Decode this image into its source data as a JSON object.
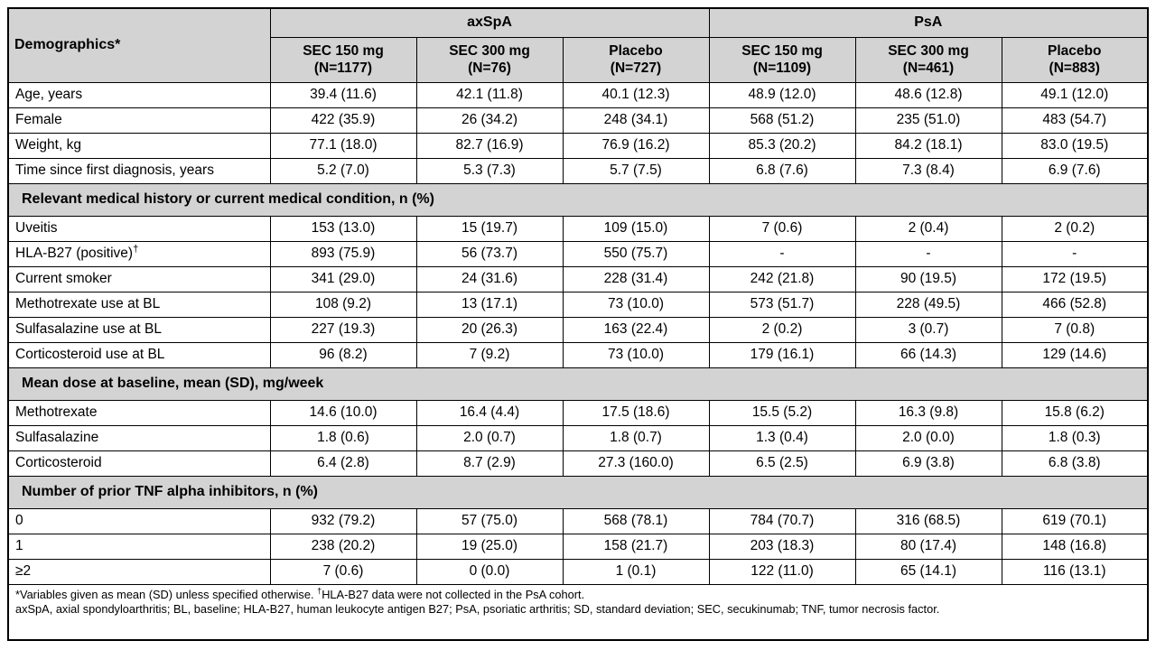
{
  "table": {
    "corner_header": "Demographics*",
    "groups": [
      {
        "label": "axSpA",
        "span": 3
      },
      {
        "label": "PsA",
        "span": 3
      }
    ],
    "columns": [
      {
        "line1": "SEC 150 mg",
        "line2": "(N=1177)"
      },
      {
        "line1": "SEC 300 mg",
        "line2": "(N=76)"
      },
      {
        "line1": "Placebo",
        "line2": "(N=727)"
      },
      {
        "line1": "SEC 150 mg",
        "line2": "(N=1109)"
      },
      {
        "line1": "SEC 300 mg",
        "line2": "(N=461)"
      },
      {
        "line1": "Placebo",
        "line2": "(N=883)"
      }
    ],
    "sections": [
      {
        "header": null,
        "rows": [
          {
            "label": "Age, years",
            "values": [
              "39.4 (11.6)",
              "42.1 (11.8)",
              "40.1 (12.3)",
              "48.9 (12.0)",
              "48.6 (12.8)",
              "49.1 (12.0)"
            ]
          },
          {
            "label": "Female",
            "values": [
              "422 (35.9)",
              "26 (34.2)",
              "248 (34.1)",
              "568 (51.2)",
              "235 (51.0)",
              "483 (54.7)"
            ]
          },
          {
            "label": "Weight, kg",
            "values": [
              "77.1 (18.0)",
              "82.7 (16.9)",
              "76.9 (16.2)",
              "85.3 (20.2)",
              "84.2 (18.1)",
              "83.0 (19.5)"
            ]
          },
          {
            "label": "Time since first diagnosis, years",
            "values": [
              "5.2 (7.0)",
              "5.3 (7.3)",
              "5.7 (7.5)",
              "6.8 (7.6)",
              "7.3 (8.4)",
              "6.9 (7.6)"
            ]
          }
        ]
      },
      {
        "header": "Relevant medical history or current medical condition, n (%)",
        "rows": [
          {
            "label": "Uveitis",
            "values": [
              "153 (13.0)",
              "15 (19.7)",
              "109 (15.0)",
              "7 (0.6)",
              "2 (0.4)",
              "2 (0.2)"
            ]
          },
          {
            "label": "HLA-B27 (positive)",
            "label_sup": "†",
            "values": [
              "893 (75.9)",
              "56 (73.7)",
              "550 (75.7)",
              "-",
              "-",
              "-"
            ]
          },
          {
            "label": "Current smoker",
            "values": [
              "341 (29.0)",
              "24 (31.6)",
              "228 (31.4)",
              "242 (21.8)",
              "90 (19.5)",
              "172 (19.5)"
            ]
          },
          {
            "label": "Methotrexate use at BL",
            "values": [
              "108 (9.2)",
              "13 (17.1)",
              "73 (10.0)",
              "573 (51.7)",
              "228 (49.5)",
              "466 (52.8)"
            ]
          },
          {
            "label": "Sulfasalazine use at BL",
            "values": [
              "227 (19.3)",
              "20 (26.3)",
              "163 (22.4)",
              "2 (0.2)",
              "3 (0.7)",
              "7 (0.8)"
            ]
          },
          {
            "label": "Corticosteroid use at BL",
            "values": [
              "96 (8.2)",
              "7 (9.2)",
              "73 (10.0)",
              "179 (16.1)",
              "66 (14.3)",
              "129 (14.6)"
            ]
          }
        ]
      },
      {
        "header": "Mean dose at baseline, mean (SD), mg/week",
        "rows": [
          {
            "label": "Methotrexate",
            "values": [
              "14.6 (10.0)",
              "16.4 (4.4)",
              "17.5 (18.6)",
              "15.5 (5.2)",
              "16.3 (9.8)",
              "15.8 (6.2)"
            ]
          },
          {
            "label": "Sulfasalazine",
            "values": [
              "1.8 (0.6)",
              "2.0 (0.7)",
              "1.8 (0.7)",
              "1.3 (0.4)",
              "2.0 (0.0)",
              "1.8 (0.3)"
            ]
          },
          {
            "label": "Corticosteroid",
            "values": [
              "6.4 (2.8)",
              "8.7 (2.9)",
              "27.3 (160.0)",
              "6.5 (2.5)",
              "6.9 (3.8)",
              "6.8 (3.8)"
            ]
          }
        ]
      },
      {
        "header": "Number of prior TNF alpha inhibitors, n (%)",
        "rows": [
          {
            "label": "0",
            "values": [
              "932 (79.2)",
              "57 (75.0)",
              "568 (78.1)",
              "784 (70.7)",
              "316 (68.5)",
              "619 (70.1)"
            ]
          },
          {
            "label": "1",
            "values": [
              "238 (20.2)",
              "19 (25.0)",
              "158 (21.7)",
              "203 (18.3)",
              "80 (17.4)",
              "148 (16.8)"
            ]
          },
          {
            "label": "≥2",
            "values": [
              "7 (0.6)",
              "0 (0.0)",
              "1 (0.1)",
              "122 (11.0)",
              "65 (14.1)",
              "116 (13.1)"
            ]
          }
        ]
      }
    ],
    "footnotes": {
      "line1_pre": "*Variables given as mean (SD) unless specified otherwise. ",
      "line1_sup": "†",
      "line1_post": "HLA-B27 data were not collected in the PsA cohort.",
      "line2": "axSpA, axial spondyloarthritis; BL, baseline; HLA-B27, human leukocyte antigen B27; PsA, psoriatic arthritis; SD, standard deviation; SEC, secukinumab; TNF, tumor necrosis factor."
    },
    "colors": {
      "header_bg": "#d3d3d3",
      "border": "#000000",
      "body_bg": "#ffffff"
    }
  }
}
